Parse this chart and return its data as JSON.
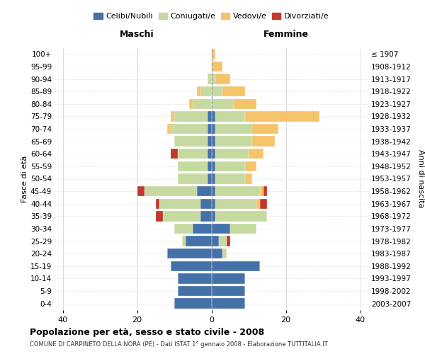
{
  "age_groups": [
    "0-4",
    "5-9",
    "10-14",
    "15-19",
    "20-24",
    "25-29",
    "30-34",
    "35-39",
    "40-44",
    "45-49",
    "50-54",
    "55-59",
    "60-64",
    "65-69",
    "70-74",
    "75-79",
    "80-84",
    "85-89",
    "90-94",
    "95-99",
    "100+"
  ],
  "birth_years": [
    "2003-2007",
    "1998-2002",
    "1993-1997",
    "1988-1992",
    "1983-1987",
    "1978-1982",
    "1973-1977",
    "1968-1972",
    "1963-1967",
    "1958-1962",
    "1953-1957",
    "1948-1952",
    "1943-1947",
    "1938-1942",
    "1933-1937",
    "1928-1932",
    "1923-1927",
    "1918-1922",
    "1913-1917",
    "1908-1912",
    "≤ 1907"
  ],
  "colors": {
    "celibi": "#4472a8",
    "coniugati": "#c5d9a0",
    "vedovi": "#f5c36a",
    "divorziati": "#c0392b"
  },
  "males": {
    "celibi": [
      10,
      9,
      9,
      11,
      12,
      7,
      5,
      3,
      3,
      4,
      1,
      1,
      1,
      1,
      1,
      1,
      0,
      0,
      0,
      0,
      0
    ],
    "coniugati": [
      0,
      0,
      0,
      0,
      0,
      1,
      5,
      10,
      11,
      14,
      8,
      8,
      8,
      9,
      10,
      9,
      5,
      3,
      1,
      0,
      0
    ],
    "vedovi": [
      0,
      0,
      0,
      0,
      0,
      0,
      0,
      0,
      0,
      0,
      0,
      0,
      0,
      0,
      1,
      1,
      1,
      1,
      0,
      0,
      0
    ],
    "divorziati": [
      0,
      0,
      0,
      0,
      0,
      0,
      0,
      2,
      1,
      2,
      0,
      0,
      2,
      0,
      0,
      0,
      0,
      0,
      0,
      0,
      0
    ]
  },
  "females": {
    "nubili": [
      9,
      9,
      9,
      13,
      3,
      2,
      5,
      1,
      1,
      1,
      1,
      1,
      1,
      1,
      1,
      1,
      0,
      0,
      0,
      0,
      0
    ],
    "coniugate": [
      0,
      0,
      0,
      0,
      1,
      2,
      7,
      14,
      11,
      12,
      8,
      8,
      9,
      10,
      10,
      8,
      6,
      3,
      1,
      0,
      0
    ],
    "vedove": [
      0,
      0,
      0,
      0,
      0,
      0,
      0,
      0,
      1,
      1,
      2,
      3,
      4,
      6,
      7,
      20,
      6,
      6,
      4,
      3,
      1
    ],
    "divorziate": [
      0,
      0,
      0,
      0,
      0,
      1,
      0,
      0,
      2,
      1,
      0,
      0,
      0,
      0,
      0,
      0,
      0,
      0,
      0,
      0,
      0
    ]
  },
  "xlim": [
    -42,
    42
  ],
  "xticks": [
    -40,
    -20,
    0,
    20,
    40
  ],
  "xticklabels": [
    "40",
    "20",
    "0",
    "20",
    "40"
  ],
  "title_main": "Popolazione per età, sesso e stato civile - 2008",
  "title_sub": "COMUNE DI CARPINETO DELLA NORA (PE) - Dati ISTAT 1° gennaio 2008 - Elaborazione TUTTITALIA.IT",
  "left_header": "Maschi",
  "right_header": "Femmine",
  "ylabel_left": "Fasce di età",
  "ylabel_right": "Anni di nascita",
  "legend_labels": [
    "Celibi/Nubili",
    "Coniugati/e",
    "Vedovi/e",
    "Divorziati/e"
  ],
  "bg_color": "#ffffff",
  "grid_color": "#cccccc",
  "bar_height": 0.82
}
